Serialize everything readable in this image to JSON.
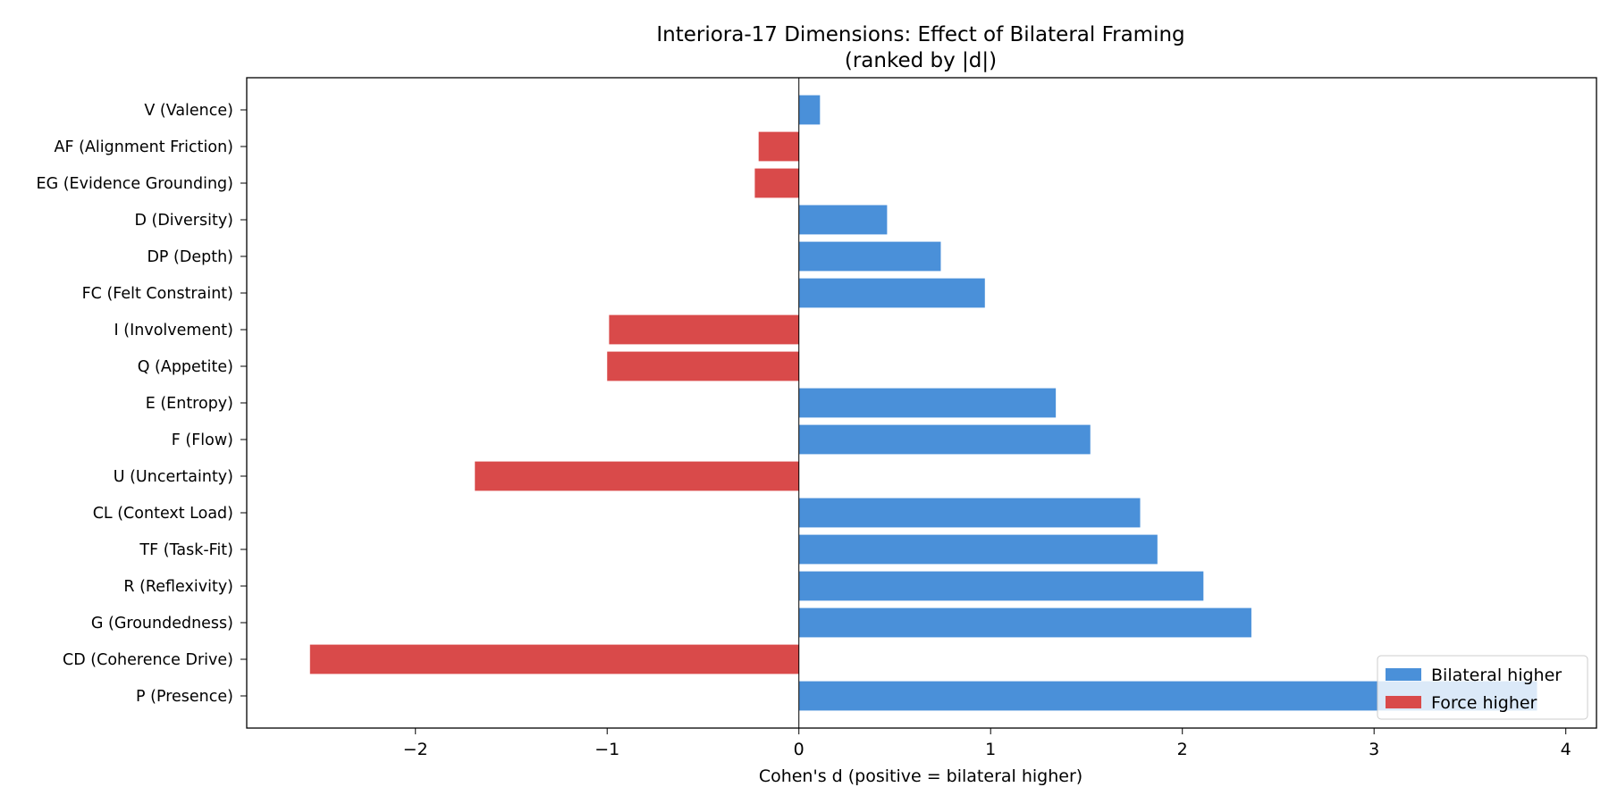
{
  "chart_data": {
    "type": "bar",
    "orientation": "horizontal",
    "title": "Interiora-17 Dimensions: Effect of Bilateral Framing",
    "subtitle": "(ranked by |d|)",
    "xlabel": "Cohen's d (positive = bilateral higher)",
    "ylabel": "",
    "xlim": [
      -2.88,
      4.16
    ],
    "xticks": [
      -2,
      -1,
      0,
      1,
      2,
      3,
      4
    ],
    "xtick_labels": [
      "−2",
      "−1",
      "0",
      "1",
      "2",
      "3",
      "4"
    ],
    "grid": false,
    "legend_position": "lower-right",
    "legend": [
      {
        "label": "Bilateral higher",
        "color": "#4a90d9"
      },
      {
        "label": "Force higher",
        "color": "#d94a4a"
      }
    ],
    "categories": [
      "V (Valence)",
      "AF (Alignment Friction)",
      "EG (Evidence Grounding)",
      "D (Diversity)",
      "DP (Depth)",
      "FC (Felt Constraint)",
      "I (Involvement)",
      "Q (Appetite)",
      "E (Entropy)",
      "F (Flow)",
      "U (Uncertainty)",
      "CL (Context Load)",
      "TF (Task-Fit)",
      "R (Reflexivity)",
      "G (Groundedness)",
      "CD (Coherence Drive)",
      "P (Presence)"
    ],
    "values": [
      0.11,
      -0.21,
      -0.23,
      0.46,
      0.74,
      0.97,
      -0.99,
      -1.0,
      1.34,
      1.52,
      -1.69,
      1.78,
      1.87,
      2.11,
      2.36,
      -2.55,
      3.85
    ]
  }
}
